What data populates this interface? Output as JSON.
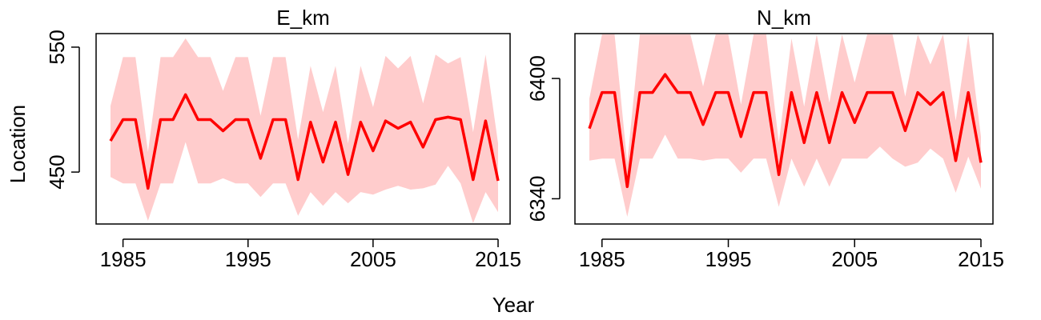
{
  "shared": {
    "xlabel": "Year",
    "ylabel": "Location"
  },
  "colors": {
    "line": "#ff0000",
    "band": "#ffcccc",
    "axis": "#000000"
  },
  "chart_data": [
    {
      "type": "line",
      "title": "E_km",
      "xlim": [
        1983,
        2016
      ],
      "ylim": [
        411,
        557
      ],
      "x_ticks": [
        1985,
        1995,
        2005,
        2015
      ],
      "y_ticks": [
        450,
        550
      ],
      "grid": false,
      "x": [
        1984,
        1985,
        1986,
        1987,
        1988,
        1989,
        1990,
        1991,
        1992,
        1993,
        1994,
        1995,
        1996,
        1997,
        1998,
        1999,
        2000,
        2001,
        2002,
        2003,
        2004,
        2005,
        2006,
        2007,
        2008,
        2009,
        2010,
        2011,
        2012,
        2013,
        2014,
        2015
      ],
      "series": [
        {
          "values": [
            475,
            492,
            492,
            437,
            492,
            492,
            512,
            492,
            492,
            483,
            492,
            492,
            461,
            492,
            492,
            444,
            490,
            458,
            490,
            448,
            490,
            467,
            491,
            485,
            490,
            470,
            492,
            494,
            492,
            444,
            491,
            443
          ],
          "lower": [
            446,
            441,
            441,
            411,
            441,
            441,
            474,
            441,
            441,
            445,
            441,
            441,
            430,
            441,
            441,
            415,
            434,
            423,
            434,
            425,
            434,
            432,
            436,
            439,
            436,
            437,
            440,
            455,
            441,
            408,
            434,
            418
          ],
          "upper": [
            503,
            542,
            542,
            466,
            542,
            542,
            557,
            542,
            542,
            515,
            542,
            542,
            495,
            542,
            542,
            476,
            535,
            498,
            535,
            473,
            535,
            502,
            543,
            533,
            543,
            505,
            544,
            537,
            542,
            482,
            544,
            473
          ]
        }
      ]
    },
    {
      "type": "line",
      "title": "N_km",
      "xlim": [
        1983,
        2016
      ],
      "ylim": [
        6329,
        6420
      ],
      "x_ticks": [
        1985,
        1995,
        2005,
        2015
      ],
      "y_ticks": [
        6340,
        6400
      ],
      "grid": false,
      "x": [
        1984,
        1985,
        1986,
        1987,
        1988,
        1989,
        1990,
        1991,
        1992,
        1993,
        1994,
        1995,
        1996,
        1997,
        1998,
        1999,
        2000,
        2001,
        2002,
        2003,
        2004,
        2005,
        2006,
        2007,
        2008,
        2009,
        2010,
        2011,
        2012,
        2013,
        2014,
        2015
      ],
      "series": [
        {
          "values": [
            6375,
            6393,
            6393,
            6346,
            6393,
            6393,
            6402,
            6393,
            6393,
            6377,
            6393,
            6393,
            6371,
            6393,
            6393,
            6352,
            6393,
            6368,
            6393,
            6368,
            6393,
            6378,
            6393,
            6393,
            6393,
            6374,
            6393,
            6387,
            6393,
            6359,
            6393,
            6358
          ],
          "lower": [
            6359,
            6360,
            6360,
            6331,
            6360,
            6360,
            6372,
            6360,
            6360,
            6359,
            6360,
            6360,
            6353,
            6360,
            6360,
            6336,
            6360,
            6346,
            6360,
            6346,
            6360,
            6360,
            6360,
            6366,
            6360,
            6356,
            6358,
            6365,
            6360,
            6343,
            6361,
            6345
          ],
          "upper": [
            6390,
            6426,
            6426,
            6358,
            6426,
            6426,
            6426,
            6426,
            6426,
            6396,
            6426,
            6426,
            6387,
            6426,
            6426,
            6368,
            6420,
            6386,
            6426,
            6388,
            6426,
            6398,
            6426,
            6426,
            6426,
            6391,
            6426,
            6407,
            6426,
            6379,
            6426,
            6371
          ]
        }
      ]
    }
  ]
}
